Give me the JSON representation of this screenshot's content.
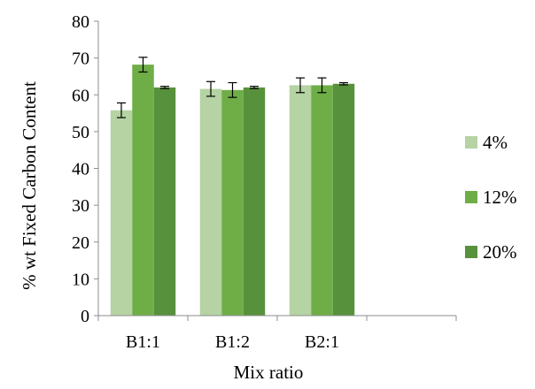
{
  "chart_data": {
    "type": "bar",
    "xlabel": "Mix ratio",
    "ylabel": "% wt Fixed Carbon Content",
    "ylim": [
      0,
      80
    ],
    "yticks": [
      0,
      10,
      20,
      30,
      40,
      50,
      60,
      70,
      80
    ],
    "grid": false,
    "legend_position": "right",
    "categories": [
      "B1:1",
      "B1:2",
      "B2:1"
    ],
    "series": [
      {
        "name": "4%",
        "color": "#b5d3a3",
        "values": [
          55.8,
          61.6,
          62.6
        ],
        "errors": [
          2.0,
          2.0,
          2.0
        ]
      },
      {
        "name": "12%",
        "color": "#6fae47",
        "values": [
          68.2,
          61.3,
          62.6
        ],
        "errors": [
          2.0,
          2.0,
          2.0
        ]
      },
      {
        "name": "20%",
        "color": "#58913c",
        "values": [
          62.0,
          62.0,
          63.0
        ],
        "errors": [
          0.3,
          0.3,
          0.3
        ]
      }
    ]
  }
}
